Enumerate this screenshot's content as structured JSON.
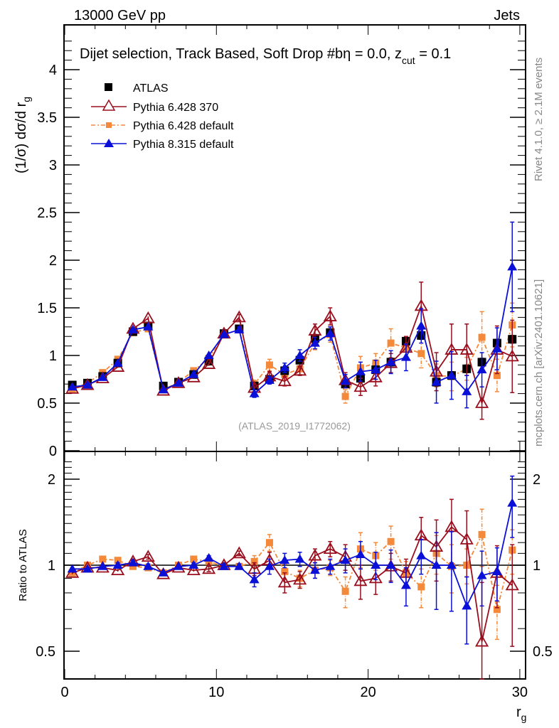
{
  "header": {
    "left": "13000 GeV pp",
    "right": "Jets"
  },
  "side_labels": {
    "rivet": "Rivet 4.1.0, ≥ 2.1M events",
    "mcplots": "mcplots.cern.ch [arXiv:2401.10621]"
  },
  "colors": {
    "atlas": "#000000",
    "py6_370": "#9a0f1e",
    "py6_default": "#f5893a",
    "py8": "#0a10d8",
    "analysis_label": "#999999",
    "side_label": "#888888"
  },
  "chart_data": [
    {
      "type": "line",
      "panel": "main",
      "title": "Dijet selection, Track Based, Soft Drop #bη = 0.0, z_cut = 0.1",
      "title_main": "Dijet selection, Track Based, Soft Drop #bη = 0.0, z",
      "title_sub": "cut",
      "title_end": " = 0.1",
      "analysis": "(ATLAS_2019_I1772062)",
      "xlabel": "r",
      "xlabel_sub": "g",
      "ylabel": "(1/σ) dσ/d r",
      "ylabel_sub": "g",
      "xlim": [
        -0.5,
        30.5
      ],
      "ylim": [
        0,
        4.4
      ],
      "yticks": [
        0,
        0.5,
        1,
        1.5,
        2,
        2.5,
        3,
        3.5,
        4
      ],
      "ytick_labels": [
        "0",
        "0.5",
        "1",
        "1.5",
        "2",
        "2.5",
        "3",
        "3.5",
        "4"
      ],
      "legend_position": "top-left",
      "x": [
        0.5,
        1.5,
        2.5,
        3.5,
        4.5,
        5.5,
        6.5,
        7.5,
        8.5,
        9.5,
        10.5,
        11.5,
        12.5,
        13.5,
        14.5,
        15.5,
        16.5,
        17.5,
        18.5,
        19.5,
        20.5,
        21.5,
        22.5,
        23.5,
        24.5,
        25.5,
        26.5,
        27.5,
        28.5,
        29.5
      ],
      "series": [
        {
          "name": "ATLAS",
          "key": "atlas",
          "marker": "square",
          "values": [
            0.69,
            0.71,
            0.78,
            0.92,
            1.25,
            1.31,
            0.68,
            0.72,
            0.8,
            0.94,
            1.23,
            1.28,
            0.68,
            0.75,
            0.84,
            0.95,
            1.18,
            1.24,
            0.7,
            0.76,
            0.85,
            0.93,
            1.15,
            1.21,
            0.72,
            0.79,
            0.86,
            0.93,
            1.13,
            1.17
          ],
          "errors": [
            0.02,
            0.02,
            0.02,
            0.02,
            0.02,
            0.02,
            0.02,
            0.02,
            0.02,
            0.02,
            0.02,
            0.02,
            0.03,
            0.03,
            0.03,
            0.03,
            0.04,
            0.04,
            0.04,
            0.04,
            0.04,
            0.04,
            0.04,
            0.04,
            0.04,
            0.04,
            0.04,
            0.04,
            0.04,
            0.04
          ]
        },
        {
          "name": "Pythia 6.428 370",
          "key": "py6_370",
          "marker": "open-triangle",
          "values": [
            0.65,
            0.69,
            0.76,
            0.88,
            1.28,
            1.39,
            0.63,
            0.71,
            0.77,
            0.91,
            1.23,
            1.4,
            0.66,
            0.78,
            0.73,
            0.84,
            1.26,
            1.41,
            0.74,
            0.67,
            0.77,
            0.92,
            1.08,
            1.52,
            0.83,
            1.06,
            1.06,
            0.5,
            1.06,
            0.99
          ],
          "errors": [
            0.01,
            0.01,
            0.01,
            0.01,
            0.02,
            0.02,
            0.01,
            0.01,
            0.01,
            0.02,
            0.02,
            0.03,
            0.04,
            0.05,
            0.05,
            0.05,
            0.07,
            0.09,
            0.08,
            0.09,
            0.09,
            0.1,
            0.12,
            0.25,
            0.2,
            0.27,
            0.27,
            0.17,
            0.25,
            0.38
          ]
        },
        {
          "name": "Pythia 6.428 default",
          "key": "py6_default",
          "marker": "square-small",
          "dashed": true,
          "values": [
            0.65,
            0.71,
            0.82,
            0.96,
            1.24,
            1.28,
            0.64,
            0.72,
            0.84,
            0.97,
            1.22,
            1.27,
            0.7,
            0.9,
            0.8,
            0.86,
            1.13,
            1.22,
            0.57,
            0.87,
            0.92,
            1.13,
            1.08,
            1.02,
            0.79,
            0.78,
            0.86,
            1.19,
            0.79,
            1.32
          ],
          "errors": [
            0.01,
            0.01,
            0.01,
            0.02,
            0.02,
            0.02,
            0.01,
            0.01,
            0.02,
            0.02,
            0.02,
            0.03,
            0.04,
            0.06,
            0.05,
            0.06,
            0.07,
            0.08,
            0.07,
            0.12,
            0.1,
            0.15,
            0.1,
            0.15,
            0.12,
            0.15,
            0.12,
            0.27,
            0.17,
            0.23
          ]
        },
        {
          "name": "Pythia 8.315 default",
          "key": "py8",
          "marker": "filled-triangle",
          "values": [
            0.67,
            0.69,
            0.77,
            0.92,
            1.27,
            1.3,
            0.64,
            0.71,
            0.8,
            1.0,
            1.22,
            1.27,
            0.6,
            0.74,
            0.87,
            1.0,
            1.13,
            1.23,
            0.73,
            0.83,
            0.85,
            0.93,
            0.98,
            1.31,
            0.72,
            0.79,
            0.62,
            0.85,
            1.07,
            1.93
          ],
          "errors": [
            0.01,
            0.01,
            0.01,
            0.02,
            0.02,
            0.02,
            0.01,
            0.01,
            0.02,
            0.02,
            0.02,
            0.03,
            0.04,
            0.04,
            0.05,
            0.06,
            0.06,
            0.07,
            0.07,
            0.1,
            0.1,
            0.12,
            0.14,
            0.18,
            0.22,
            0.25,
            0.17,
            0.18,
            0.22,
            0.47
          ]
        }
      ]
    },
    {
      "type": "line",
      "panel": "ratio",
      "ylabel": "Ratio to ATLAS",
      "yscale": "log",
      "ylim": [
        0.4,
        2.4
      ],
      "yticks": [
        0.5,
        1,
        2
      ],
      "ytick_labels": [
        "0.5",
        "1",
        "2"
      ],
      "xticks": [
        0,
        10,
        20,
        30
      ],
      "xtick_labels": [
        "0",
        "10",
        "20",
        "30"
      ],
      "series": [
        {
          "name": "Pythia 6.428 370",
          "key": "py6_370",
          "values": [
            0.94,
            0.98,
            0.98,
            0.96,
            1.03,
            1.07,
            0.93,
            0.98,
            0.96,
            0.97,
            1.0,
            1.1,
            0.97,
            1.04,
            0.87,
            0.89,
            1.08,
            1.14,
            1.07,
            0.88,
            0.9,
            0.99,
            0.94,
            1.27,
            1.16,
            1.36,
            1.23,
            0.54,
            0.94,
            0.85
          ],
          "errors": [
            0.01,
            0.01,
            0.01,
            0.01,
            0.02,
            0.02,
            0.01,
            0.01,
            0.01,
            0.02,
            0.02,
            0.02,
            0.05,
            0.07,
            0.07,
            0.06,
            0.06,
            0.07,
            0.11,
            0.12,
            0.11,
            0.11,
            0.11,
            0.2,
            0.28,
            0.34,
            0.32,
            0.33,
            0.23,
            0.33
          ]
        },
        {
          "name": "Pythia 6.428 default",
          "key": "py6_default",
          "values": [
            0.94,
            1.0,
            1.05,
            1.04,
            0.99,
            0.98,
            0.94,
            1.0,
            1.05,
            1.03,
            0.99,
            0.99,
            1.03,
            1.2,
            0.95,
            0.9,
            0.96,
            0.98,
            0.81,
            1.14,
            1.08,
            1.21,
            0.94,
            0.84,
            1.1,
            0.99,
            1.0,
            1.28,
            0.7,
            1.13
          ],
          "errors": [
            0.01,
            0.01,
            0.01,
            0.02,
            0.02,
            0.02,
            0.01,
            0.01,
            0.02,
            0.02,
            0.02,
            0.02,
            0.05,
            0.08,
            0.06,
            0.06,
            0.06,
            0.06,
            0.1,
            0.16,
            0.12,
            0.16,
            0.09,
            0.13,
            0.17,
            0.19,
            0.14,
            0.29,
            0.15,
            0.2
          ]
        },
        {
          "name": "Pythia 8.315 default",
          "key": "py8",
          "values": [
            0.97,
            0.97,
            0.99,
            1.0,
            1.02,
            0.99,
            0.94,
            0.99,
            1.0,
            1.06,
            0.99,
            0.99,
            0.89,
            0.99,
            1.04,
            1.05,
            0.96,
            0.99,
            1.04,
            1.09,
            1.0,
            1.0,
            0.85,
            1.08,
            1.0,
            1.0,
            0.72,
            0.92,
            0.95,
            1.65
          ],
          "errors": [
            0.01,
            0.01,
            0.01,
            0.02,
            0.02,
            0.02,
            0.01,
            0.01,
            0.02,
            0.02,
            0.02,
            0.02,
            0.05,
            0.06,
            0.06,
            0.06,
            0.06,
            0.06,
            0.1,
            0.12,
            0.11,
            0.13,
            0.13,
            0.15,
            0.3,
            0.31,
            0.19,
            0.2,
            0.2,
            0.4
          ]
        }
      ]
    }
  ],
  "legend": [
    {
      "label": "ATLAS",
      "key": "atlas"
    },
    {
      "label": "Pythia 6.428 370",
      "key": "py6_370"
    },
    {
      "label": "Pythia 6.428 default",
      "key": "py6_default"
    },
    {
      "label": "Pythia 8.315 default",
      "key": "py8"
    }
  ]
}
